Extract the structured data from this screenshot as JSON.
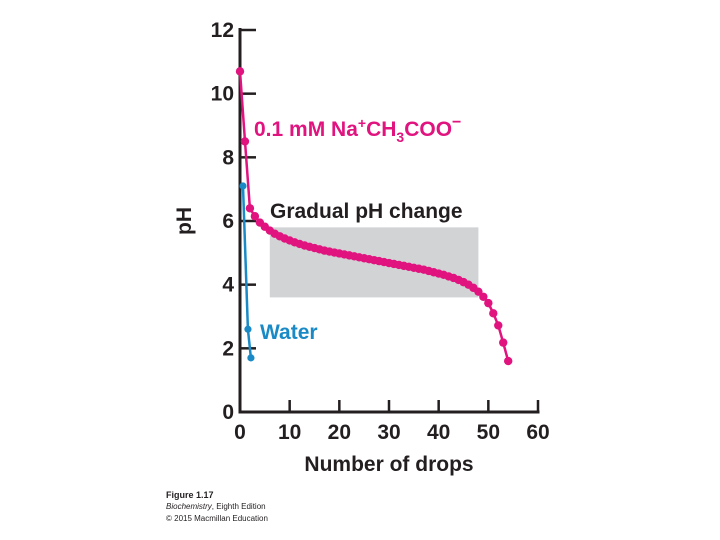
{
  "chart_data": {
    "type": "line",
    "xlabel": "Number of drops",
    "ylabel": "pH",
    "xlim": [
      0,
      60
    ],
    "ylim": [
      0,
      12
    ],
    "x_ticks": [
      "0",
      "10",
      "20",
      "30",
      "40",
      "50",
      "60"
    ],
    "y_ticks": [
      "0",
      "2",
      "4",
      "6",
      "8",
      "10",
      "12"
    ],
    "grid": false,
    "series": [
      {
        "name_parts": {
          "a": "0.1 mM Na",
          "sup1": "+",
          "b": "CH",
          "sub": "3",
          "c": "COO",
          "sup2": "−"
        },
        "color": "#e0137f",
        "points": [
          [
            0,
            10.7
          ],
          [
            1,
            8.5
          ],
          [
            2,
            6.4
          ],
          [
            3,
            6.15
          ],
          [
            4,
            5.95
          ],
          [
            5,
            5.82
          ],
          [
            6,
            5.7
          ],
          [
            7,
            5.6
          ],
          [
            8,
            5.52
          ],
          [
            9,
            5.45
          ],
          [
            10,
            5.39
          ],
          [
            11,
            5.33
          ],
          [
            12,
            5.28
          ],
          [
            13,
            5.23
          ],
          [
            14,
            5.19
          ],
          [
            15,
            5.15
          ],
          [
            16,
            5.11
          ],
          [
            17,
            5.07
          ],
          [
            18,
            5.04
          ],
          [
            19,
            5.01
          ],
          [
            20,
            4.98
          ],
          [
            21,
            4.95
          ],
          [
            22,
            4.92
          ],
          [
            23,
            4.89
          ],
          [
            24,
            4.86
          ],
          [
            25,
            4.83
          ],
          [
            26,
            4.8
          ],
          [
            27,
            4.77
          ],
          [
            28,
            4.74
          ],
          [
            29,
            4.71
          ],
          [
            30,
            4.68
          ],
          [
            31,
            4.65
          ],
          [
            32,
            4.62
          ],
          [
            33,
            4.59
          ],
          [
            34,
            4.56
          ],
          [
            35,
            4.53
          ],
          [
            36,
            4.5
          ],
          [
            37,
            4.47
          ],
          [
            38,
            4.43
          ],
          [
            39,
            4.39
          ],
          [
            40,
            4.35
          ],
          [
            41,
            4.31
          ],
          [
            42,
            4.26
          ],
          [
            43,
            4.21
          ],
          [
            44,
            4.15
          ],
          [
            45,
            4.08
          ],
          [
            46,
            4.0
          ],
          [
            47,
            3.9
          ],
          [
            48,
            3.78
          ],
          [
            49,
            3.62
          ],
          [
            50,
            3.42
          ],
          [
            51,
            3.1
          ],
          [
            52,
            2.72
          ],
          [
            53,
            2.18
          ],
          [
            54,
            1.6
          ]
        ]
      },
      {
        "name": "Water",
        "color": "#1a8ac6",
        "points": [
          [
            0.6,
            7.1
          ],
          [
            1.6,
            2.6
          ],
          [
            2.2,
            1.7
          ]
        ]
      }
    ],
    "annotations": [
      {
        "text": "Gradual pH change",
        "x_range": [
          6,
          48
        ],
        "y_range": [
          3.6,
          5.8
        ],
        "fill": "#d2d3d5"
      }
    ]
  },
  "caption": {
    "figure": "Figure 1.17",
    "book": "Biochemistry",
    "edition": ", Eighth Edition",
    "copyright": "© 2015 Macmillan Education"
  }
}
